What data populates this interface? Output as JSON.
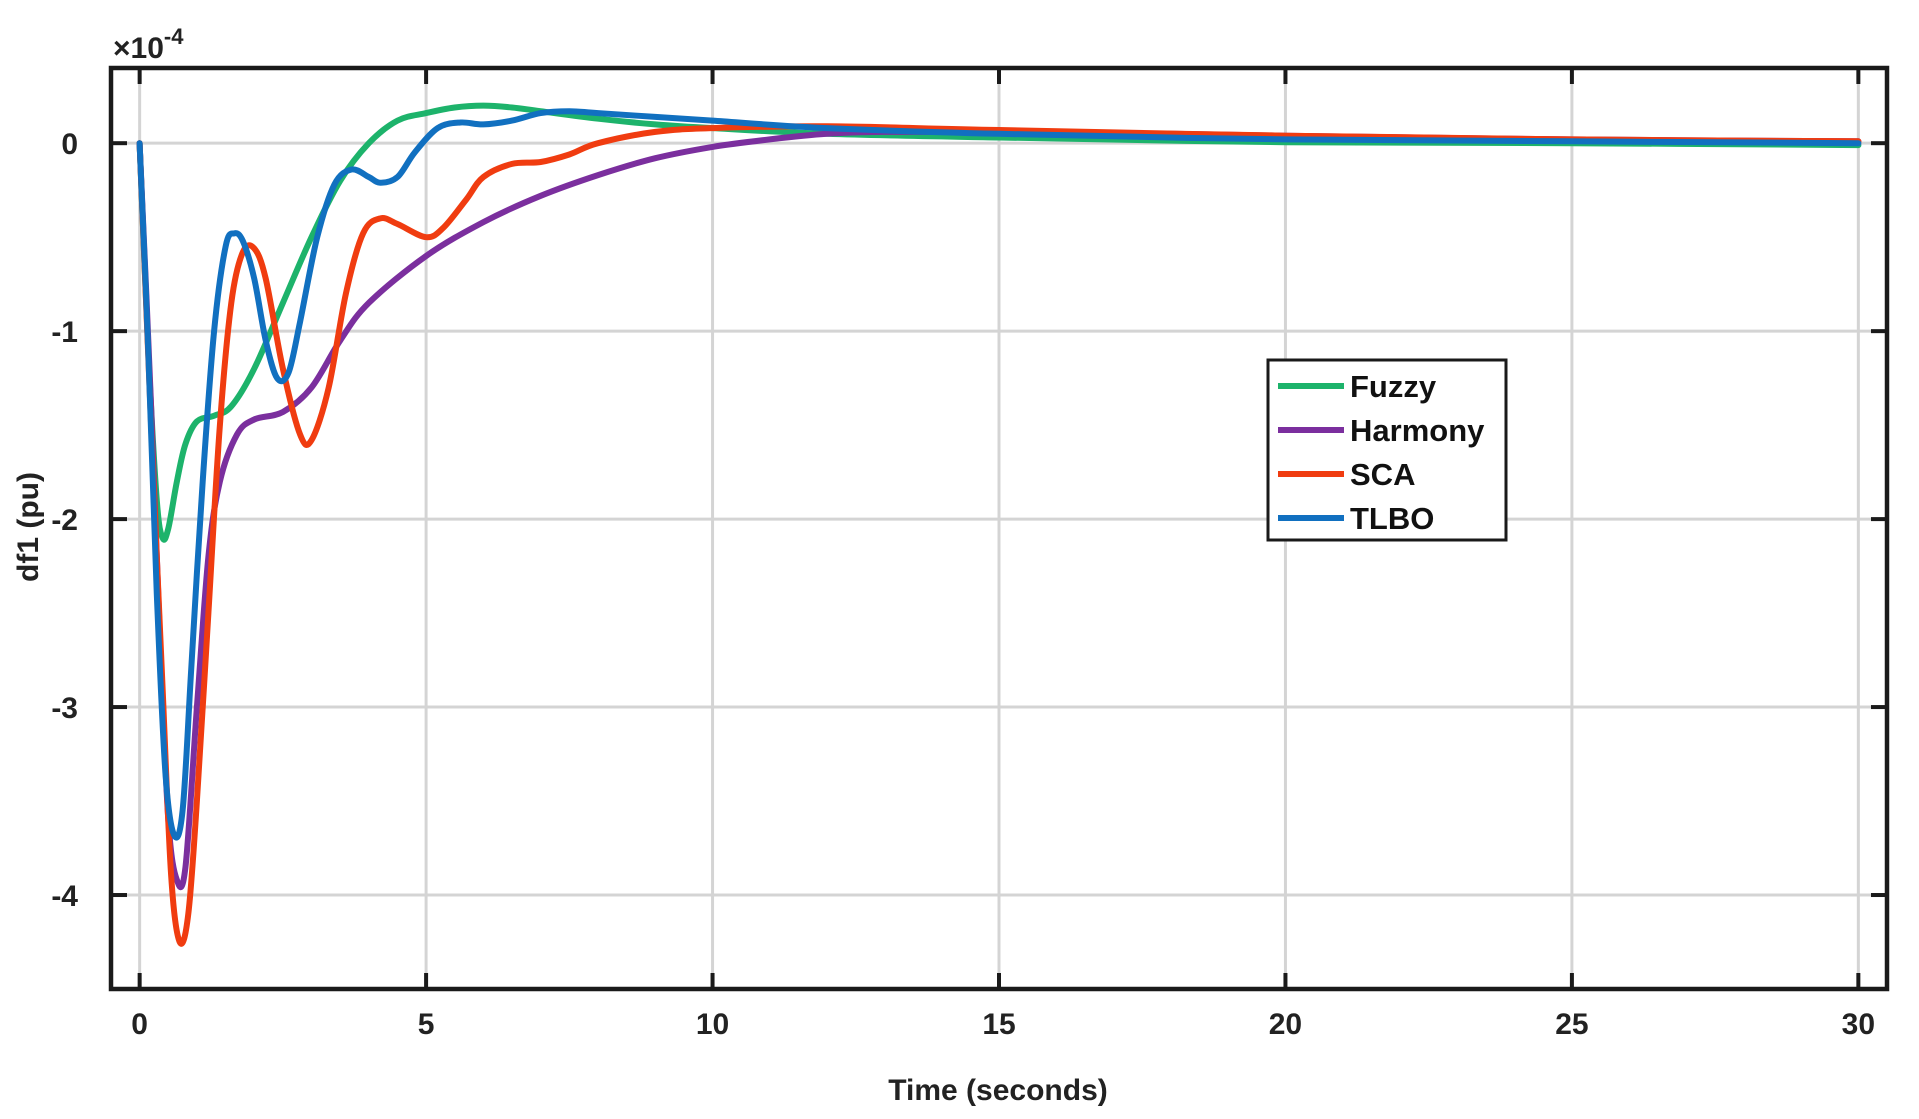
{
  "chart_data": {
    "type": "line",
    "xlabel": "Time (seconds)",
    "ylabel": "df1 (pu)",
    "y_exponent_label": "×10",
    "y_exponent_power": "-4",
    "xlim": [
      -0.5,
      30.5
    ],
    "ylim": [
      -4.5,
      0.4
    ],
    "xticks": [
      0,
      5,
      10,
      15,
      20,
      25,
      30
    ],
    "xtick_labels": [
      "0",
      "5",
      "10",
      "15",
      "20",
      "25",
      "30"
    ],
    "yticks": [
      0,
      -1,
      -2,
      -3,
      -4
    ],
    "ytick_labels": [
      "0",
      "-1",
      "-2",
      "-3",
      "-4"
    ],
    "grid": true,
    "legend_position": "center-right",
    "series": [
      {
        "name": "Fuzzy",
        "color": "#1db36b",
        "points": [
          [
            0,
            0
          ],
          [
            0.15,
            -1.1
          ],
          [
            0.3,
            -1.9
          ],
          [
            0.4,
            -2.1
          ],
          [
            0.5,
            -2.05
          ],
          [
            0.65,
            -1.8
          ],
          [
            0.8,
            -1.6
          ],
          [
            1.0,
            -1.48
          ],
          [
            1.3,
            -1.45
          ],
          [
            1.6,
            -1.4
          ],
          [
            2.0,
            -1.2
          ],
          [
            2.5,
            -0.85
          ],
          [
            3.0,
            -0.5
          ],
          [
            3.5,
            -0.2
          ],
          [
            4.0,
            0.0
          ],
          [
            4.5,
            0.12
          ],
          [
            5.0,
            0.16
          ],
          [
            5.5,
            0.19
          ],
          [
            6.0,
            0.2
          ],
          [
            6.5,
            0.19
          ],
          [
            7.0,
            0.17
          ],
          [
            8.0,
            0.13
          ],
          [
            9.0,
            0.1
          ],
          [
            10.0,
            0.08
          ],
          [
            12.0,
            0.05
          ],
          [
            15.0,
            0.03
          ],
          [
            20.0,
            0.005
          ],
          [
            25.0,
            0.0
          ],
          [
            30.0,
            -0.01
          ]
        ]
      },
      {
        "name": "Harmony",
        "color": "#7b2f9e",
        "points": [
          [
            0,
            0
          ],
          [
            0.2,
            -1.4
          ],
          [
            0.35,
            -2.6
          ],
          [
            0.5,
            -3.6
          ],
          [
            0.65,
            -3.92
          ],
          [
            0.8,
            -3.85
          ],
          [
            1.0,
            -3.0
          ],
          [
            1.2,
            -2.2
          ],
          [
            1.4,
            -1.8
          ],
          [
            1.7,
            -1.55
          ],
          [
            2.0,
            -1.47
          ],
          [
            2.5,
            -1.43
          ],
          [
            3.0,
            -1.3
          ],
          [
            3.5,
            -1.05
          ],
          [
            4.0,
            -0.85
          ],
          [
            5.0,
            -0.6
          ],
          [
            6.0,
            -0.42
          ],
          [
            7.0,
            -0.28
          ],
          [
            8.0,
            -0.17
          ],
          [
            9.0,
            -0.08
          ],
          [
            10.0,
            -0.02
          ],
          [
            11.0,
            0.02
          ],
          [
            12.0,
            0.05
          ],
          [
            13.0,
            0.06
          ],
          [
            15.0,
            0.06
          ],
          [
            18.0,
            0.05
          ],
          [
            20.0,
            0.04
          ],
          [
            25.0,
            0.02
          ],
          [
            30.0,
            0.01
          ]
        ]
      },
      {
        "name": "SCA",
        "color": "#f03c10",
        "points": [
          [
            0,
            0
          ],
          [
            0.2,
            -1.5
          ],
          [
            0.4,
            -2.9
          ],
          [
            0.55,
            -3.9
          ],
          [
            0.7,
            -4.25
          ],
          [
            0.85,
            -4.1
          ],
          [
            1.0,
            -3.5
          ],
          [
            1.2,
            -2.5
          ],
          [
            1.4,
            -1.5
          ],
          [
            1.6,
            -0.85
          ],
          [
            1.8,
            -0.58
          ],
          [
            2.0,
            -0.56
          ],
          [
            2.2,
            -0.72
          ],
          [
            2.5,
            -1.2
          ],
          [
            2.8,
            -1.55
          ],
          [
            3.0,
            -1.58
          ],
          [
            3.3,
            -1.3
          ],
          [
            3.6,
            -0.8
          ],
          [
            3.9,
            -0.48
          ],
          [
            4.2,
            -0.4
          ],
          [
            4.5,
            -0.43
          ],
          [
            5.0,
            -0.5
          ],
          [
            5.3,
            -0.45
          ],
          [
            5.7,
            -0.3
          ],
          [
            6.0,
            -0.18
          ],
          [
            6.5,
            -0.11
          ],
          [
            7.0,
            -0.1
          ],
          [
            7.5,
            -0.06
          ],
          [
            8.0,
            0.0
          ],
          [
            9.0,
            0.06
          ],
          [
            10.0,
            0.08
          ],
          [
            12.0,
            0.09
          ],
          [
            15.0,
            0.07
          ],
          [
            20.0,
            0.04
          ],
          [
            25.0,
            0.02
          ],
          [
            30.0,
            0.01
          ]
        ]
      },
      {
        "name": "TLBO",
        "color": "#1170c0",
        "points": [
          [
            0,
            0
          ],
          [
            0.15,
            -1.1
          ],
          [
            0.3,
            -2.4
          ],
          [
            0.45,
            -3.35
          ],
          [
            0.6,
            -3.68
          ],
          [
            0.75,
            -3.55
          ],
          [
            0.9,
            -2.8
          ],
          [
            1.1,
            -1.8
          ],
          [
            1.3,
            -1.0
          ],
          [
            1.5,
            -0.55
          ],
          [
            1.65,
            -0.48
          ],
          [
            1.8,
            -0.52
          ],
          [
            2.0,
            -0.72
          ],
          [
            2.2,
            -1.05
          ],
          [
            2.4,
            -1.25
          ],
          [
            2.6,
            -1.22
          ],
          [
            2.8,
            -0.95
          ],
          [
            3.1,
            -0.5
          ],
          [
            3.4,
            -0.22
          ],
          [
            3.7,
            -0.14
          ],
          [
            4.0,
            -0.18
          ],
          [
            4.2,
            -0.21
          ],
          [
            4.5,
            -0.18
          ],
          [
            4.8,
            -0.05
          ],
          [
            5.2,
            0.08
          ],
          [
            5.6,
            0.11
          ],
          [
            6.0,
            0.1
          ],
          [
            6.5,
            0.12
          ],
          [
            7.0,
            0.16
          ],
          [
            7.5,
            0.17
          ],
          [
            8.0,
            0.16
          ],
          [
            9.0,
            0.14
          ],
          [
            10.0,
            0.12
          ],
          [
            12.0,
            0.08
          ],
          [
            15.0,
            0.05
          ],
          [
            20.0,
            0.02
          ],
          [
            25.0,
            0.01
          ],
          [
            30.0,
            0.0
          ]
        ]
      }
    ]
  }
}
